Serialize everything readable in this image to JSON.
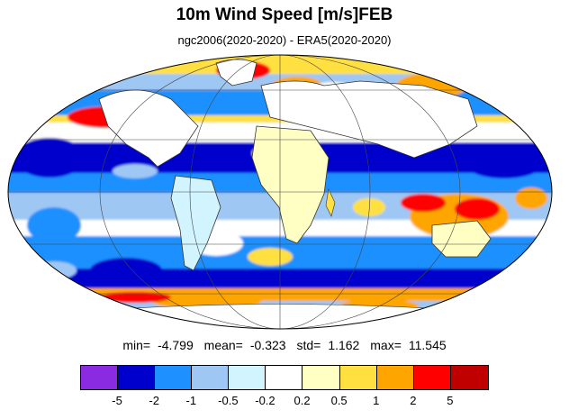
{
  "title": "10m Wind Speed [m/s]FEB",
  "subtitle": "ngc2006(2020-2020) - ERA5(2020-2020)",
  "stats": {
    "min_label": "min=",
    "min": "-4.799",
    "mean_label": "mean=",
    "mean": "-0.323",
    "std_label": "std=",
    "std": "1.162",
    "max_label": "max=",
    "max": "11.545"
  },
  "colorbar": {
    "colors": [
      "#8a2be2",
      "#0000cd",
      "#1e90ff",
      "#9fc7f4",
      "#d2f4ff",
      "#ffffff",
      "#ffffc4",
      "#ffe040",
      "#ffa500",
      "#ff0000",
      "#c00000"
    ],
    "labels": [
      "-5",
      "-2",
      "-1",
      "-0.5",
      "-0.2",
      "0.2",
      "0.5",
      "1",
      "2",
      "5"
    ]
  },
  "map": {
    "projection": "mollweide",
    "ocean_pattern_colors": {
      "strong_negative": "#0000cd",
      "negative": "#1e90ff",
      "weak_negative": "#9fc7f4",
      "near_zero": "#ffffff",
      "weak_positive": "#ffe040",
      "positive": "#ffa500",
      "strong_positive": "#ff0000"
    }
  }
}
